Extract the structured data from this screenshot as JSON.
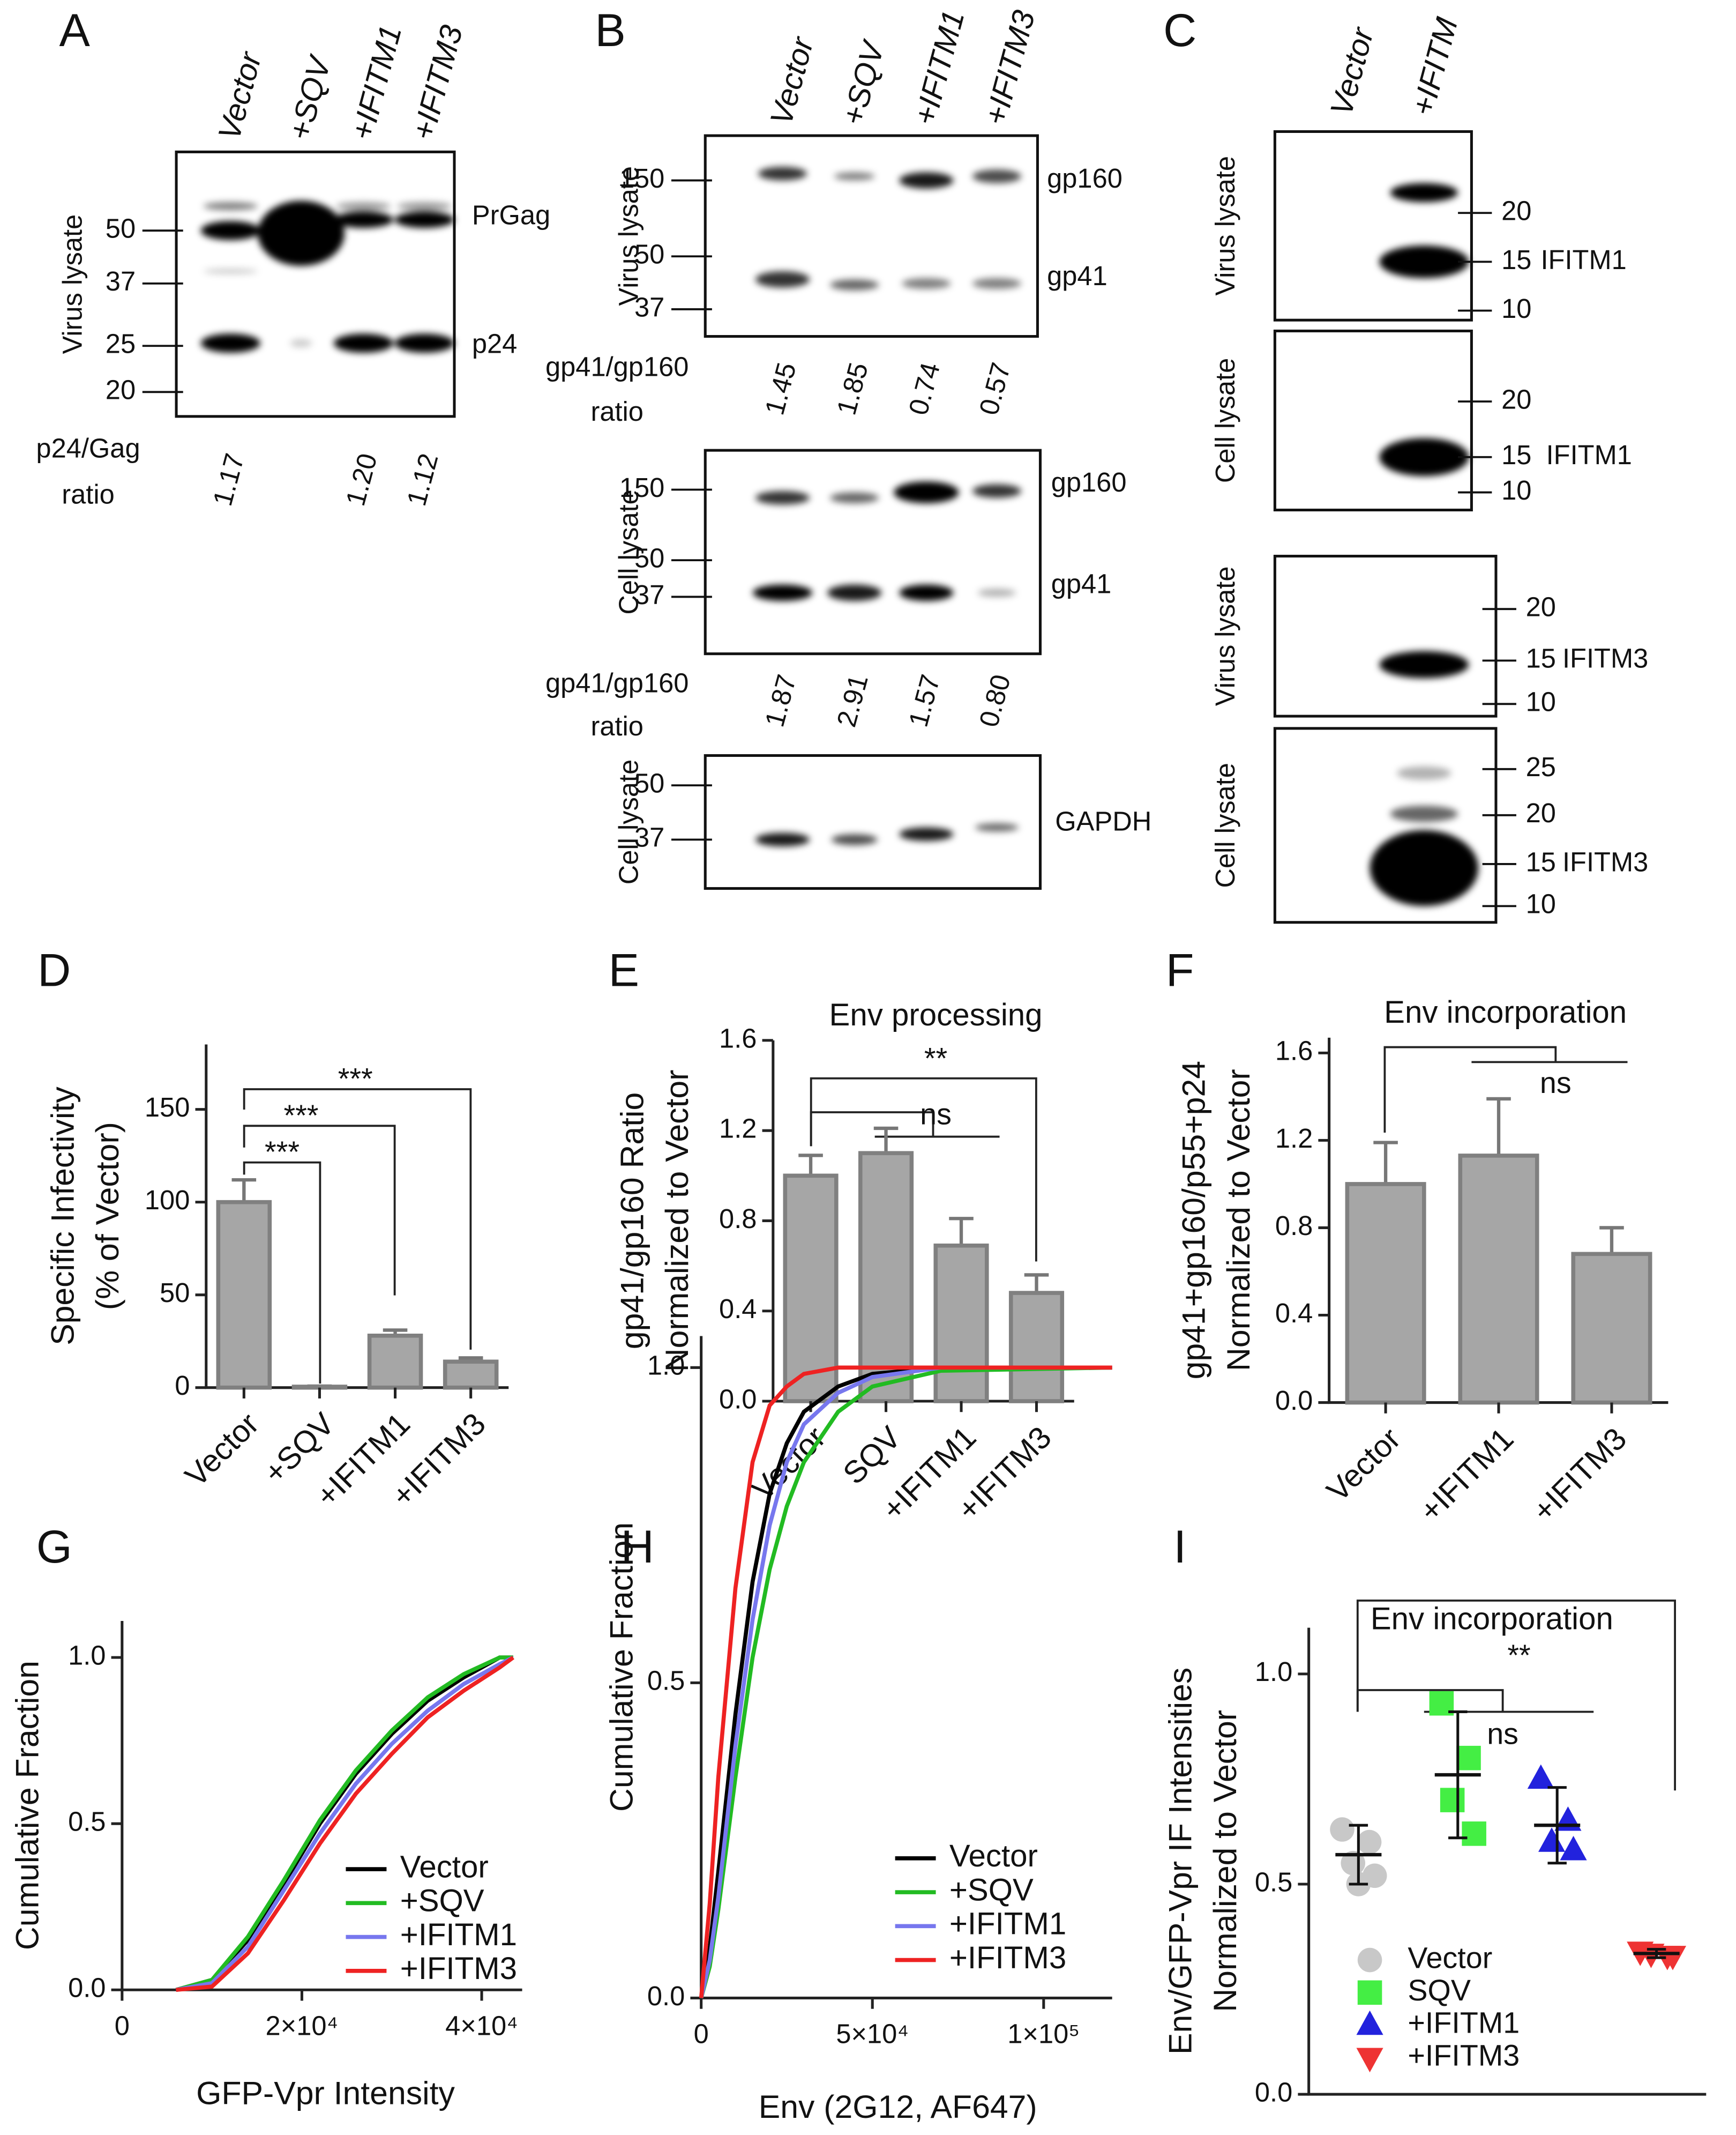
{
  "panel_labels": [
    "A",
    "B",
    "C",
    "D",
    "E",
    "F",
    "G",
    "H",
    "I"
  ],
  "blots": {
    "A": {
      "lanes": [
        "Vector",
        "+SQV",
        "+IFITM1",
        "+IFITM3"
      ],
      "panels": [
        {
          "side_label": "Virus lysate",
          "markers": [
            "50",
            "37",
            "25",
            "20"
          ],
          "bands": [
            "PrGag",
            "p24"
          ],
          "ratio_label": [
            "p24/Gag",
            "ratio"
          ],
          "ratios": [
            "1.17",
            null,
            "1.20",
            "1.12"
          ]
        }
      ]
    },
    "B": {
      "lanes": [
        "Vector",
        "+SQV",
        "+IFITM1",
        "+IFITM3"
      ],
      "panels": [
        {
          "side_label": "Virus lysate",
          "markers": [
            "150",
            "50",
            "37"
          ],
          "bands": [
            "gp160",
            "gp41"
          ],
          "ratio_label": [
            "gp41/gp160",
            "ratio"
          ],
          "ratios": [
            "1.45",
            "1.85",
            "0.74",
            "0.57"
          ]
        },
        {
          "side_label": "Cell lysate",
          "markers": [
            "150",
            "50",
            "37"
          ],
          "bands": [
            "gp160",
            "gp41"
          ],
          "ratio_label": [
            "gp41/gp160",
            "ratio"
          ],
          "ratios": [
            "1.87",
            "2.91",
            "1.57",
            "0.80"
          ]
        },
        {
          "side_label": "Cell lysate",
          "markers": [
            "50",
            "37"
          ],
          "bands": [
            "GAPDH"
          ]
        }
      ]
    },
    "C": {
      "lanes": [
        "Vector",
        "+IFITM"
      ],
      "panels": [
        {
          "side_label": "Virus lysate",
          "markers": [
            "20",
            "15",
            "10"
          ],
          "bands": [
            "IFITM1"
          ]
        },
        {
          "side_label": "Cell lysate",
          "markers": [
            "20",
            "15",
            "10"
          ],
          "bands": [
            "IFITM1"
          ]
        },
        {
          "side_label": "Virus lysate",
          "markers": [
            "20",
            "15",
            "10"
          ],
          "bands": [
            "IFITM3"
          ]
        },
        {
          "side_label": "Cell lysate",
          "markers": [
            "25",
            "20",
            "15",
            "10"
          ],
          "bands": [
            "IFITM3"
          ]
        }
      ]
    }
  },
  "chart_data": [
    {
      "type": "bar",
      "ylabel": [
        "Specific Infectivity",
        "(% of Vector)"
      ],
      "categories": [
        "Vector",
        "+SQV",
        "+IFITM1",
        "+IFITM3"
      ],
      "values": [
        100,
        0.5,
        28,
        14
      ],
      "errors": [
        12,
        0.3,
        3,
        2
      ],
      "ylim": [
        0,
        185
      ],
      "yticks": [
        0,
        50,
        100,
        150
      ],
      "color": "#a6a6a6",
      "annotations": [
        "***",
        "***",
        "***"
      ]
    },
    {
      "type": "bar",
      "title": "Env processing",
      "ylabel": [
        "gp41/gp160 Ratio",
        "Normalized to Vector"
      ],
      "categories": [
        "Vector",
        "SQV",
        "+IFITM1",
        "+IFITM3"
      ],
      "values": [
        1.0,
        1.1,
        0.69,
        0.48
      ],
      "errors": [
        0.09,
        0.11,
        0.12,
        0.08
      ],
      "ylim": [
        0,
        1.6
      ],
      "yticks": [
        {
          "value": 0,
          "label": "0.0"
        },
        0.4,
        0.8,
        1.2,
        1.6
      ],
      "color": "#a6a6a6",
      "annotations": [
        "**",
        "ns"
      ]
    },
    {
      "type": "bar",
      "title": "Env incorporation",
      "ylabel": [
        "gp41+gp160/p55+p24",
        "Normalized to Vector"
      ],
      "categories": [
        "Vector",
        "+IFITM1",
        "+IFITM3"
      ],
      "values": [
        1.0,
        1.13,
        0.68
      ],
      "errors": [
        0.19,
        0.26,
        0.12
      ],
      "ylim": [
        0,
        1.67
      ],
      "yticks": [
        {
          "value": 0,
          "label": "0.0"
        },
        0.4,
        0.8,
        1.2,
        1.6
      ],
      "color": "#a6a6a6",
      "annotations": [
        "ns"
      ]
    },
    {
      "type": "line",
      "ylabel": "Cumulative Fraction",
      "xlabel": "GFP-Vpr Intensity",
      "x": [
        6000,
        10000,
        14000,
        18000,
        22000,
        26000,
        30000,
        34000,
        38000,
        42000,
        43500
      ],
      "series": [
        {
          "name": "Vector",
          "color": "#000000",
          "values": [
            0,
            0.03,
            0.15,
            0.32,
            0.5,
            0.65,
            0.77,
            0.87,
            0.94,
            1.0,
            1.0
          ]
        },
        {
          "name": "+SQV",
          "color": "#22bb22",
          "values": [
            0,
            0.03,
            0.16,
            0.33,
            0.51,
            0.66,
            0.78,
            0.88,
            0.95,
            1.0,
            1.0
          ]
        },
        {
          "name": "+IFITM1",
          "color": "#7777ee",
          "values": [
            0,
            0.02,
            0.13,
            0.3,
            0.47,
            0.62,
            0.74,
            0.84,
            0.92,
            0.98,
            1.0
          ]
        },
        {
          "name": "+IFITM3",
          "color": "#ee2222",
          "values": [
            0,
            0.01,
            0.11,
            0.27,
            0.44,
            0.59,
            0.71,
            0.82,
            0.9,
            0.97,
            1.0
          ]
        }
      ],
      "xlim": [
        0,
        44500
      ],
      "xticks": [
        0,
        {
          "value": 20000,
          "label": "2×10⁴"
        },
        {
          "value": 40000,
          "label": "4×10⁴"
        }
      ],
      "ylim": [
        0,
        1.11
      ],
      "yticks": [
        {
          "value": 0,
          "label": "0.0"
        },
        0.5,
        {
          "value": 1,
          "label": "1.0"
        }
      ],
      "legend": "lower right"
    },
    {
      "type": "line",
      "ylabel": "Cumulative Fraction",
      "xlabel": "Env (2G12, AF647)",
      "x": [
        0,
        2500,
        5000,
        10000,
        15000,
        20000,
        25000,
        30000,
        40000,
        50000,
        70000,
        120000
      ],
      "series": [
        {
          "name": "Vector",
          "color": "#000000",
          "values": [
            0,
            0.08,
            0.2,
            0.45,
            0.66,
            0.8,
            0.88,
            0.93,
            0.97,
            0.99,
            1,
            1
          ]
        },
        {
          "name": "+SQV",
          "color": "#22bb22",
          "values": [
            0,
            0.05,
            0.14,
            0.35,
            0.54,
            0.68,
            0.78,
            0.85,
            0.93,
            0.97,
            0.995,
            1
          ]
        },
        {
          "name": "+IFITM1",
          "color": "#7777ee",
          "values": [
            0,
            0.06,
            0.16,
            0.4,
            0.6,
            0.75,
            0.85,
            0.91,
            0.96,
            0.985,
            1,
            1
          ]
        },
        {
          "name": "+IFITM3",
          "color": "#ee2222",
          "values": [
            0,
            0.15,
            0.35,
            0.65,
            0.85,
            0.94,
            0.97,
            0.99,
            1,
            1,
            1,
            1
          ]
        }
      ],
      "xlim": [
        0,
        120000
      ],
      "xticks": [
        0,
        {
          "value": 50000,
          "label": "5×10⁴"
        },
        {
          "value": 100000,
          "label": "1×10⁵"
        }
      ],
      "ylim": [
        0,
        1.05
      ],
      "yticks": [
        {
          "value": 0,
          "label": "0.0"
        },
        0.5,
        {
          "value": 1,
          "label": "1.0"
        }
      ],
      "legend": "lower right"
    },
    {
      "type": "scatter",
      "title": "Env incorporation",
      "ylabel": [
        "Env/GFP-Vpr IF Intensities",
        "Normalized to Vector"
      ],
      "series": [
        {
          "name": "Vector",
          "color": "#c8c8c8",
          "marker": "circle",
          "values": [
            0.63,
            0.6,
            0.55,
            0.52,
            0.5
          ],
          "mean": 0.57,
          "sd": 0.07
        },
        {
          "name": "SQV",
          "color": "#44ee44",
          "marker": "square",
          "values": [
            0.93,
            0.8,
            0.7,
            0.62
          ],
          "mean": 0.76,
          "sd": 0.15
        },
        {
          "name": "+IFITM1",
          "color": "#2222dd",
          "marker": "triangle-up",
          "values": [
            0.75,
            0.65,
            0.6,
            0.58
          ],
          "mean": 0.64,
          "sd": 0.09
        },
        {
          "name": "+IFITM3",
          "color": "#ee3333",
          "marker": "triangle-down",
          "values": [
            0.34,
            0.33,
            0.335,
            0.33
          ],
          "mean": 0.335,
          "sd": 0.01
        }
      ],
      "ylim": [
        0,
        1.11
      ],
      "yticks": [
        {
          "value": 0,
          "label": "0.0"
        },
        0.5,
        {
          "value": 1,
          "label": "1.0"
        }
      ],
      "annotations": [
        "**",
        "ns"
      ]
    }
  ]
}
